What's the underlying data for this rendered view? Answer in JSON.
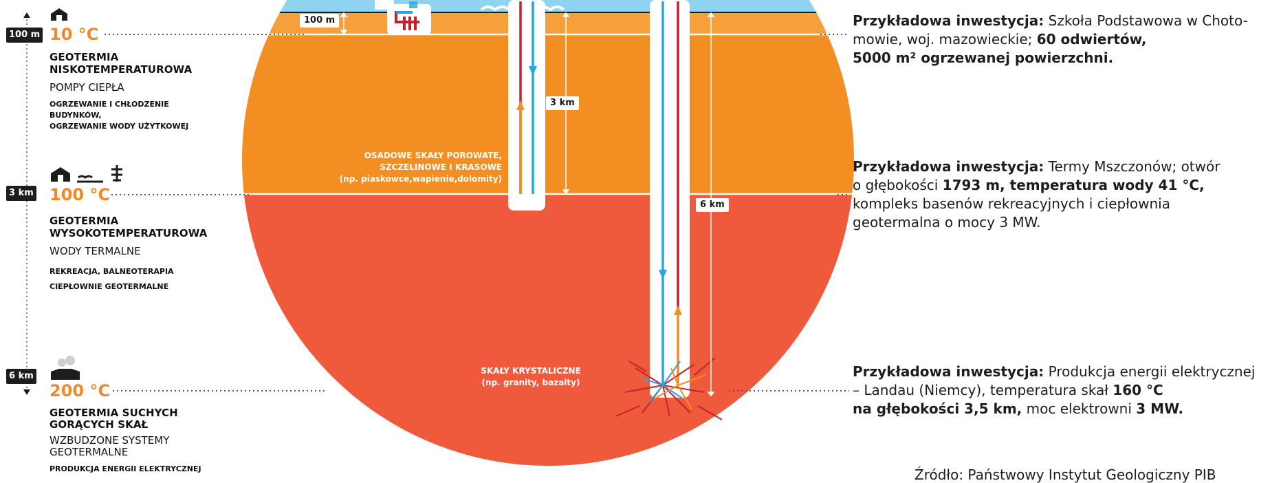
{
  "levels": [
    {
      "depth": "100 m",
      "temperature": "10 °C",
      "title_1": "GEOTERMIA",
      "title_2": "NISKOTEMPERATUROWA",
      "technology": "POMPY CIEPŁA",
      "applications": [
        "OGRZEWANIE I CHŁODZENIE",
        "BUDYNKÓW,",
        "OGRZEWANIE WODY UŻYTKOWEJ"
      ]
    },
    {
      "depth": "3 km",
      "temperature": "100 °C",
      "title_1": "GEOTERMIA",
      "title_2": "WYSOKOTEMPERATUROWA",
      "technology": "WODY TERMALNE",
      "applications": [
        "REKREACJA, BALNEOTERAPIA",
        "CIEPŁOWNIE GEOTERMALNE"
      ]
    },
    {
      "depth": "6 km",
      "temperature": "200 °C",
      "title_1": "GEOTERMIA SUCHYCH",
      "title_2": "GORĄCYCH SKAŁ",
      "technology_1": "WZBUDZONE SYSTEMY",
      "technology_2": "GEOTERMALNE",
      "applications": [
        "PRODUKCJA ENERGII ELEKTRYCZNEJ"
      ]
    }
  ],
  "diagram_labels": {
    "dist_100m": "100 m",
    "dist_3km": "3 km",
    "dist_6km": "6 km",
    "rock_sedimentary": [
      "OSADOWE SKAŁY POROWATE,",
      "SZCZELINOWE I KRASOWE",
      "(np. piaskowce,wapienie,dolomity)"
    ],
    "rock_crystalline": [
      "SKAŁY KRYSTALICZNE",
      "(np. granity, bazalty)"
    ]
  },
  "examples": [
    {
      "label": "Przykładowa inwestycja:",
      "line1_rest": " Szkoła Podstawowa w Choto-",
      "line2_plain": "mowie, woj. mazowieckie; ",
      "line2_bold": "60 odwiertów,",
      "line3_bold": "5000 m² ogrzewanej powierzchni."
    },
    {
      "label": "Przykładowa inwestycja:",
      "line1_rest": " Termy Mszczonów; otwór",
      "line2_plain": "o głębokości ",
      "line2_bold": "1793 m, temperatura wody 41 °C,",
      "line3": "kompleks basenów rekreacyjnych i ciepłownia",
      "line4": "geotermalna o mocy 3 MW."
    },
    {
      "label": "Przykładowa inwestycja:",
      "line1_rest": " Produkcja energii elektrycznej",
      "line2_plain": "– Landau (Niemcy), temperatura skał ",
      "line2_bold": "160 °C",
      "line3_bold_a": "na głębokości 3,5 km,",
      "line3_plain": " moc elektrowni ",
      "line3_bold_b": "3 MW."
    }
  ],
  "source": "Źródło: Państwowy Instytut Geologiczny PIB",
  "colors": {
    "sky": "#8fd3f0",
    "layer_shallow": "#f5a03a",
    "layer_middle": "#f28e22",
    "layer_deep": "#ee5a3b",
    "accent_temp": "#f0892a",
    "pipe_blue": "#29a6de",
    "pipe_red": "#c8202a",
    "badge": "#1d1d1b"
  }
}
